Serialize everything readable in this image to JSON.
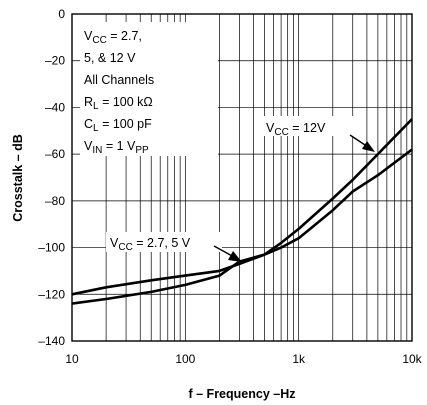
{
  "chart_data": {
    "type": "line",
    "xlabel": "f – Frequency –Hz",
    "ylabel": "Crosstalk – dB",
    "x_scale": "log",
    "xlim": [
      10,
      10000
    ],
    "ylim": [
      -140,
      0
    ],
    "grid": true,
    "x_ticks": [
      {
        "value": 10,
        "label": "10"
      },
      {
        "value": 100,
        "label": "100"
      },
      {
        "value": 1000,
        "label": "1k"
      },
      {
        "value": 10000,
        "label": "10k"
      }
    ],
    "y_ticks": [
      {
        "value": 0,
        "label": "0"
      },
      {
        "value": -20,
        "label": "–20"
      },
      {
        "value": -40,
        "label": "–40"
      },
      {
        "value": -60,
        "label": "–60"
      },
      {
        "value": -80,
        "label": "–80"
      },
      {
        "value": -100,
        "label": "–100"
      },
      {
        "value": -120,
        "label": "–120"
      },
      {
        "value": -140,
        "label": "–140"
      }
    ],
    "series": [
      {
        "name": "VCC = 12V",
        "label_main": "V",
        "label_sub": "CC",
        "label_rest": " = 12V",
        "x": [
          10,
          20,
          50,
          100,
          200,
          300,
          500,
          700,
          1000,
          2000,
          3000,
          5000,
          10000
        ],
        "y": [
          -124,
          -122,
          -119,
          -116,
          -112,
          -106,
          -103,
          -98,
          -92,
          -79,
          -71,
          -60,
          -45
        ]
      },
      {
        "name": "VCC = 2.7, 5 V",
        "label_main": "V",
        "label_sub": "CC",
        "label_rest": " = 2.7, 5 V",
        "x": [
          10,
          20,
          50,
          100,
          200,
          300,
          500,
          700,
          1000,
          2000,
          3000,
          5000,
          10000
        ],
        "y": [
          -120,
          -117,
          -114,
          -112,
          -110,
          -107,
          -103,
          -100,
          -96,
          -84,
          -76,
          -69,
          -58
        ]
      }
    ],
    "conditions": {
      "vcc_main": "V",
      "vcc_sub": "CC",
      "vcc_rest": " = 2.7,",
      "vcc_line2": "5, & 12 V",
      "channels": "All Channels",
      "rl_main": "R",
      "rl_sub": "L",
      "rl_rest": " = 100 kΩ",
      "cl_main": "C",
      "cl_sub": "L",
      "cl_rest": " = 100 pF",
      "vin_main": "V",
      "vin_sub": "IN",
      "vin_rest": " = 1 V",
      "vin_sub2": "PP"
    }
  }
}
